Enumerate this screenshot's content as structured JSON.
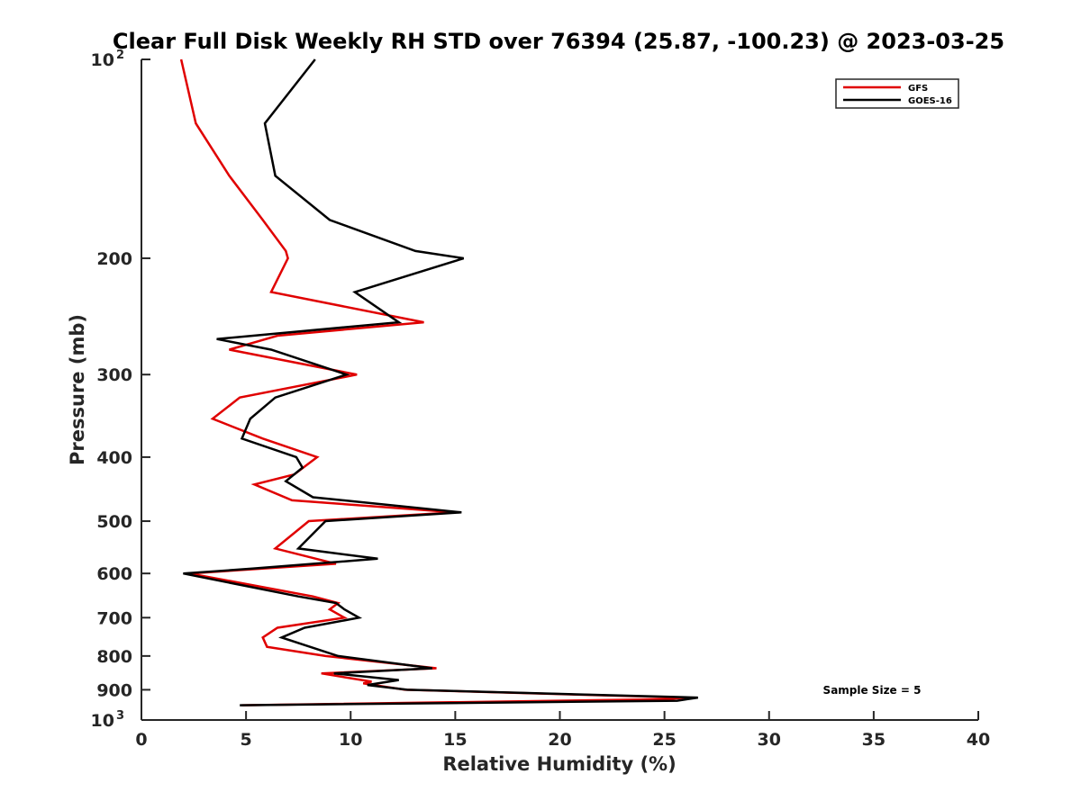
{
  "chart_data": {
    "type": "line",
    "title": "Clear Full Disk Weekly RH STD over 76394 (25.87, -100.23) @ 2023-03-25",
    "xlabel": "Relative Humidity (%)",
    "ylabel": "Pressure (mb)",
    "xlim": [
      0,
      40
    ],
    "ylim": [
      100,
      1000
    ],
    "y_scale": "log",
    "y_reversed": true,
    "grid": false,
    "legend_position": "top-right",
    "x_ticks": [
      "0",
      "5",
      "10",
      "15",
      "20",
      "25",
      "30",
      "35",
      "40"
    ],
    "y_ticks": [
      {
        "value": 100,
        "base": "10",
        "exp": "2"
      },
      {
        "value": 200,
        "label": "200"
      },
      {
        "value": 300,
        "label": "300"
      },
      {
        "value": 400,
        "label": "400"
      },
      {
        "value": 500,
        "label": "500"
      },
      {
        "value": 600,
        "label": "600"
      },
      {
        "value": 700,
        "label": "700"
      },
      {
        "value": 800,
        "label": "800"
      },
      {
        "value": 900,
        "label": "900"
      },
      {
        "value": 1000,
        "base": "10",
        "exp": "3"
      }
    ],
    "annotation": "Sample Size = 5",
    "series": [
      {
        "name": "GFS",
        "color": "#e00000",
        "points": [
          [
            1.9,
            100
          ],
          [
            2.6,
            125
          ],
          [
            4.2,
            150
          ],
          [
            5.8,
            175
          ],
          [
            6.9,
            195
          ],
          [
            7.0,
            200
          ],
          [
            6.2,
            225
          ],
          [
            13.5,
            250
          ],
          [
            6.5,
            262
          ],
          [
            4.2,
            275
          ],
          [
            10.3,
            300
          ],
          [
            4.7,
            325
          ],
          [
            3.4,
            350
          ],
          [
            5.8,
            375
          ],
          [
            8.4,
            400
          ],
          [
            7.3,
            425
          ],
          [
            5.4,
            440
          ],
          [
            7.2,
            465
          ],
          [
            15.0,
            485
          ],
          [
            8.0,
            500
          ],
          [
            6.4,
            550
          ],
          [
            9.3,
            580
          ],
          [
            2.3,
            600
          ],
          [
            8.2,
            650
          ],
          [
            9.4,
            665
          ],
          [
            9.0,
            680
          ],
          [
            9.7,
            700
          ],
          [
            6.5,
            725
          ],
          [
            5.8,
            750
          ],
          [
            6.0,
            775
          ],
          [
            8.8,
            800
          ],
          [
            14.1,
            835
          ],
          [
            8.6,
            850
          ],
          [
            11.0,
            875
          ],
          [
            10.6,
            880
          ],
          [
            12.6,
            900
          ],
          [
            26.0,
            925
          ],
          [
            25.1,
            930
          ],
          [
            4.8,
            950
          ]
        ]
      },
      {
        "name": "GOES-16",
        "color": "#000000",
        "points": [
          [
            8.3,
            100
          ],
          [
            5.9,
            125
          ],
          [
            6.4,
            150
          ],
          [
            9.0,
            175
          ],
          [
            13.1,
            195
          ],
          [
            15.4,
            200
          ],
          [
            10.2,
            225
          ],
          [
            12.3,
            250
          ],
          [
            3.6,
            265
          ],
          [
            6.2,
            275
          ],
          [
            9.8,
            300
          ],
          [
            6.4,
            325
          ],
          [
            5.2,
            350
          ],
          [
            4.8,
            375
          ],
          [
            7.4,
            400
          ],
          [
            7.7,
            415
          ],
          [
            6.9,
            435
          ],
          [
            8.2,
            460
          ],
          [
            15.3,
            485
          ],
          [
            8.8,
            500
          ],
          [
            7.5,
            550
          ],
          [
            11.3,
            570
          ],
          [
            5.3,
            590
          ],
          [
            2.0,
            600
          ],
          [
            7.5,
            650
          ],
          [
            9.3,
            665
          ],
          [
            9.7,
            680
          ],
          [
            10.4,
            700
          ],
          [
            7.8,
            725
          ],
          [
            6.7,
            750
          ],
          [
            9.4,
            800
          ],
          [
            13.9,
            835
          ],
          [
            9.2,
            850
          ],
          [
            12.3,
            870
          ],
          [
            10.8,
            885
          ],
          [
            12.7,
            900
          ],
          [
            26.6,
            925
          ],
          [
            25.6,
            935
          ],
          [
            4.7,
            950
          ]
        ]
      }
    ]
  }
}
